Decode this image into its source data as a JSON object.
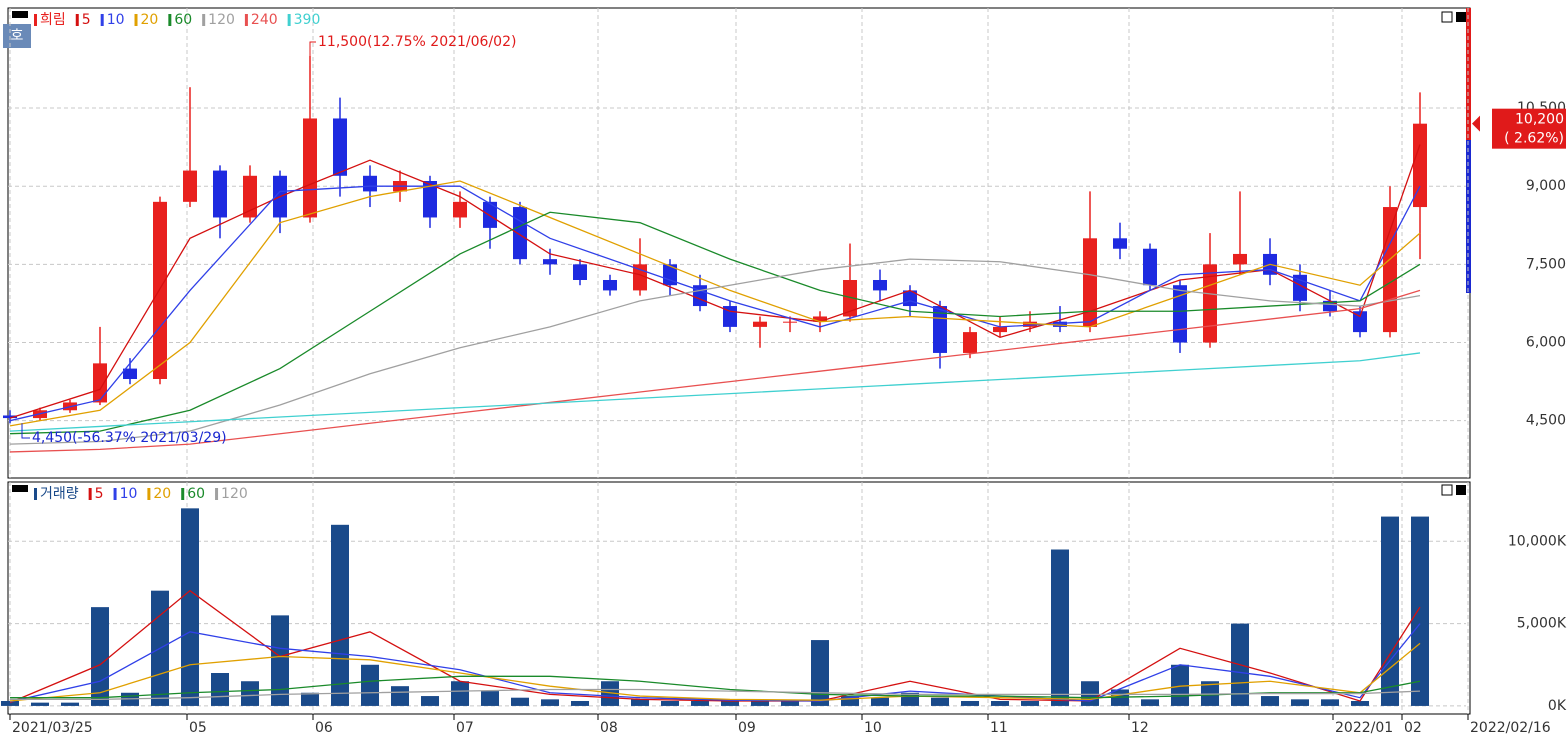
{
  "chart_data": [
    {
      "type": "candlestick",
      "title": "희림",
      "badge": "호",
      "up_color": "#e8201e",
      "down_color": "#1e2ae0",
      "open": [
        4600,
        4550,
        4700,
        4850,
        5500,
        5300,
        8700,
        9300,
        8400,
        9200,
        8400,
        10300,
        9200,
        8900,
        9100,
        8400,
        8700,
        8600,
        7600,
        7500,
        7200,
        7000,
        7500,
        7100,
        6700,
        6300,
        6400,
        6400,
        6500,
        7200,
        7000,
        6700,
        5800,
        6200,
        6300,
        6400,
        6300,
        8000,
        7800,
        7100,
        6000,
        7500,
        7700,
        7300,
        6800,
        6600,
        6200,
        8600
      ],
      "high": [
        4700,
        4750,
        4900,
        6300,
        5700,
        8800,
        10900,
        9400,
        9400,
        9300,
        11500,
        10700,
        9400,
        9300,
        9200,
        8900,
        8800,
        8700,
        7800,
        7600,
        7300,
        8000,
        7600,
        7300,
        6800,
        6500,
        6500,
        6600,
        7900,
        7400,
        7100,
        6800,
        6300,
        6500,
        6600,
        6700,
        8900,
        8300,
        7900,
        7200,
        8100,
        8900,
        8000,
        7500,
        7000,
        6700,
        9000,
        10800
      ],
      "low": [
        4450,
        4500,
        4650,
        4800,
        5200,
        5200,
        8600,
        8000,
        8300,
        8100,
        8300,
        8800,
        8600,
        8700,
        8200,
        8200,
        7800,
        7500,
        7300,
        7100,
        6900,
        6900,
        6900,
        6600,
        6200,
        5900,
        6200,
        6200,
        6400,
        6800,
        6500,
        5500,
        5700,
        6100,
        6200,
        6200,
        6200,
        7600,
        7000,
        5800,
        5900,
        7300,
        7100,
        6600,
        6500,
        6100,
        6100,
        7600
      ],
      "close": [
        4550,
        4700,
        4850,
        5600,
        5300,
        8700,
        9300,
        8400,
        9200,
        8400,
        10300,
        9200,
        8900,
        9100,
        8400,
        8700,
        8200,
        7600,
        7500,
        7200,
        7000,
        7500,
        7100,
        6700,
        6300,
        6400,
        6400,
        6500,
        7200,
        7000,
        6700,
        5800,
        6200,
        6300,
        6400,
        6300,
        8000,
        7800,
        7100,
        6000,
        7500,
        7700,
        7300,
        6800,
        6600,
        6200,
        8600,
        10200
      ],
      "series": [
        {
          "name": "5",
          "color": "#d41010",
          "x": [
            0,
            3,
            6,
            9,
            12,
            15,
            18,
            21,
            24,
            27,
            30,
            33,
            36,
            39,
            42,
            45,
            47
          ],
          "values": [
            4550,
            5100,
            8000,
            8800,
            9500,
            8800,
            7700,
            7300,
            6600,
            6400,
            7000,
            6100,
            6600,
            7200,
            7400,
            6500,
            9800
          ]
        },
        {
          "name": "10",
          "color": "#3040e8",
          "x": [
            0,
            3,
            6,
            9,
            12,
            15,
            18,
            21,
            24,
            27,
            30,
            33,
            36,
            39,
            42,
            45,
            47
          ],
          "values": [
            4500,
            4900,
            7000,
            8900,
            9000,
            9000,
            8000,
            7400,
            6800,
            6300,
            6800,
            6300,
            6400,
            7300,
            7400,
            6800,
            9000
          ]
        },
        {
          "name": "20",
          "color": "#e0a000",
          "x": [
            0,
            3,
            6,
            9,
            12,
            15,
            18,
            21,
            24,
            27,
            30,
            33,
            36,
            39,
            42,
            45,
            47
          ],
          "values": [
            4400,
            4700,
            6000,
            8300,
            8800,
            9100,
            8400,
            7700,
            7000,
            6400,
            6500,
            6400,
            6300,
            6900,
            7500,
            7100,
            8100
          ]
        },
        {
          "name": "60",
          "color": "#1a8a2a",
          "x": [
            0,
            3,
            6,
            9,
            12,
            15,
            18,
            21,
            24,
            27,
            30,
            33,
            36,
            39,
            42,
            45,
            47
          ],
          "values": [
            4250,
            4300,
            4700,
            5500,
            6600,
            7700,
            8500,
            8300,
            7600,
            7000,
            6600,
            6500,
            6600,
            6600,
            6700,
            6800,
            7500
          ]
        },
        {
          "name": "120",
          "color": "#a0a0a0",
          "x": [
            0,
            3,
            6,
            9,
            12,
            15,
            18,
            21,
            24,
            27,
            30,
            33,
            36,
            39,
            42,
            45,
            47
          ],
          "values": [
            4050,
            4100,
            4300,
            4800,
            5400,
            5900,
            6300,
            6800,
            7100,
            7400,
            7600,
            7550,
            7300,
            7000,
            6800,
            6700,
            6900
          ]
        },
        {
          "name": "240",
          "color": "#e85050",
          "x": [
            0,
            3,
            6,
            9,
            12,
            15,
            18,
            21,
            24,
            27,
            30,
            33,
            36,
            39,
            42,
            45,
            47
          ],
          "values": [
            3900,
            3950,
            4050,
            4250,
            4450,
            4650,
            4850,
            5050,
            5250,
            5450,
            5650,
            5850,
            6050,
            6250,
            6450,
            6650,
            7000
          ]
        },
        {
          "name": "390",
          "color": "#40d0d0",
          "x": [
            0,
            3,
            6,
            9,
            12,
            15,
            18,
            21,
            24,
            27,
            30,
            33,
            36,
            39,
            42,
            45,
            47
          ],
          "values": [
            4300,
            4390,
            4480,
            4570,
            4660,
            4750,
            4840,
            4930,
            5020,
            5110,
            5200,
            5290,
            5380,
            5470,
            5560,
            5650,
            5800
          ]
        }
      ],
      "annotations": [
        "11,500(12.75% 2021/06/02)",
        "4,450(-56.37% 2021/03/29)"
      ],
      "last_price": {
        "value": 10200,
        "label": "10,200"
      },
      "change_label": "( 2.62%)",
      "ylim": [
        3400,
        12420
      ],
      "yticks": [
        {
          "value": 4500,
          "label": "4,500"
        },
        {
          "value": 6000,
          "label": "6,000"
        },
        {
          "value": 7500,
          "label": "7,500"
        },
        {
          "value": 9000,
          "label": "9,000"
        },
        {
          "value": 10500,
          "label": "10,500"
        }
      ],
      "grid": true
    },
    {
      "type": "bar",
      "title": "거래량",
      "color": "#1a4a8a",
      "values": [
        300,
        200,
        200,
        6000,
        800,
        7000,
        12000,
        2000,
        1500,
        5500,
        800,
        11000,
        2500,
        1200,
        600,
        1500,
        900,
        500,
        400,
        300,
        1500,
        400,
        300,
        300,
        300,
        300,
        300,
        4000,
        600,
        500,
        800,
        500,
        300,
        300,
        300,
        9500,
        1500,
        1000,
        400,
        2500,
        1500,
        5000,
        600,
        400,
        400,
        300,
        11500,
        11500
      ],
      "series": [
        {
          "name": "5",
          "color": "#d41010",
          "x": [
            0,
            3,
            6,
            9,
            12,
            15,
            18,
            21,
            24,
            27,
            30,
            33,
            36,
            39,
            42,
            45,
            47
          ],
          "values": [
            200,
            2500,
            7000,
            3000,
            4500,
            1500,
            700,
            400,
            300,
            300,
            1500,
            400,
            300,
            3500,
            2000,
            300,
            6000
          ]
        },
        {
          "name": "10",
          "color": "#3040e8",
          "x": [
            0,
            3,
            6,
            9,
            12,
            15,
            18,
            21,
            24,
            27,
            30,
            33,
            36,
            39,
            42,
            45,
            47
          ],
          "values": [
            250,
            1500,
            4500,
            3500,
            3000,
            2200,
            800,
            500,
            350,
            300,
            900,
            600,
            300,
            2500,
            1800,
            500,
            5000
          ]
        },
        {
          "name": "20",
          "color": "#e0a000",
          "x": [
            0,
            3,
            6,
            9,
            12,
            15,
            18,
            21,
            24,
            27,
            30,
            33,
            36,
            39,
            42,
            45,
            47
          ],
          "values": [
            300,
            800,
            2500,
            3000,
            2800,
            2000,
            1200,
            600,
            400,
            350,
            600,
            500,
            400,
            1200,
            1500,
            800,
            3800
          ]
        },
        {
          "name": "60",
          "color": "#1a8a2a",
          "x": [
            0,
            3,
            6,
            9,
            12,
            15,
            18,
            21,
            24,
            27,
            30,
            33,
            36,
            39,
            42,
            45,
            47
          ],
          "values": [
            500,
            500,
            800,
            1000,
            1500,
            1800,
            1800,
            1500,
            1000,
            700,
            600,
            600,
            500,
            600,
            800,
            800,
            1500
          ]
        },
        {
          "name": "120",
          "color": "#a0a0a0",
          "x": [
            0,
            3,
            6,
            9,
            12,
            15,
            18,
            21,
            24,
            27,
            30,
            33,
            36,
            39,
            42,
            45,
            47
          ],
          "values": [
            400,
            400,
            500,
            700,
            800,
            900,
            1000,
            1000,
            900,
            800,
            700,
            700,
            700,
            700,
            750,
            750,
            900
          ]
        }
      ],
      "ylim": [
        -490,
        13600
      ],
      "yticks": [
        {
          "value": 0,
          "label": "0K"
        },
        {
          "value": 5000,
          "label": "5,000K"
        },
        {
          "value": 10000,
          "label": "10,000K"
        }
      ],
      "xticks": [
        {
          "value": 0,
          "label": "2021/03/25"
        },
        {
          "value": 5.9,
          "label": "05"
        },
        {
          "value": 10.1,
          "label": "06"
        },
        {
          "value": 14.8,
          "label": "07"
        },
        {
          "value": 19.6,
          "label": "08"
        },
        {
          "value": 24.2,
          "label": "09"
        },
        {
          "value": 28.4,
          "label": "10"
        },
        {
          "value": 32.6,
          "label": "11"
        },
        {
          "value": 37.3,
          "label": "12"
        },
        {
          "value": 44.1,
          "label": "2022/01"
        },
        {
          "value": 46.4,
          "label": "02"
        },
        {
          "value": 48.6,
          "label": "2022/02/16"
        }
      ],
      "grid": true
    }
  ]
}
